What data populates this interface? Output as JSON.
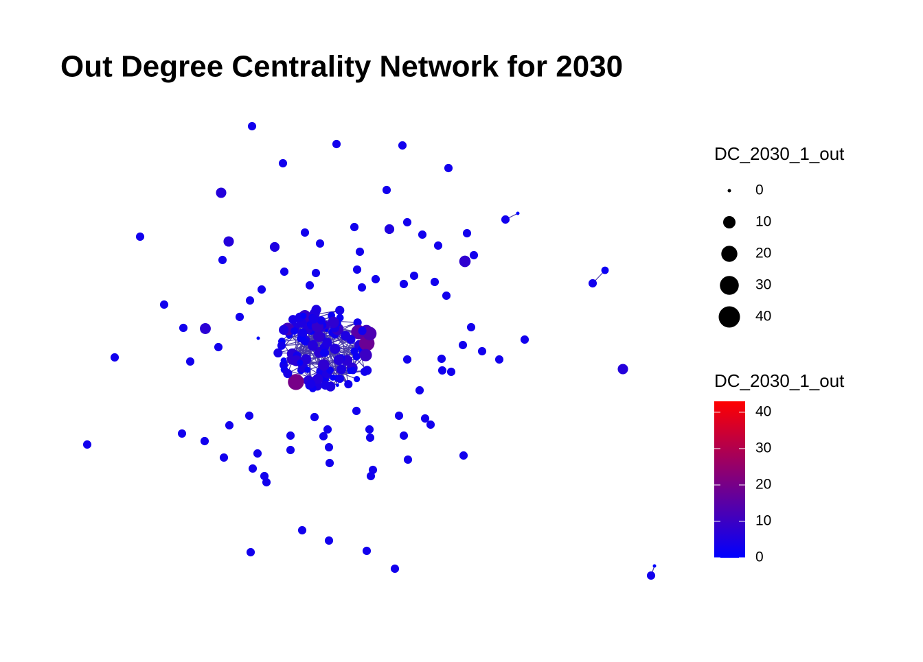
{
  "chart_data": {
    "type": "network",
    "title": "Out Degree Centrality Network for 2030",
    "values": [
      3,
      3,
      3,
      3,
      3,
      6,
      3,
      3,
      6,
      3,
      5,
      3,
      3,
      3,
      3,
      3,
      5,
      3,
      3,
      3,
      8,
      3,
      3,
      3,
      3,
      3,
      3,
      3,
      3,
      3,
      3,
      3,
      3,
      3,
      3,
      3,
      3,
      7,
      3,
      3,
      3,
      3,
      3,
      3,
      3,
      3,
      3,
      3,
      3,
      3,
      6,
      3,
      2,
      3,
      3,
      3,
      3,
      3,
      3,
      3,
      3,
      3,
      3,
      3,
      3,
      3,
      3,
      3,
      3,
      3,
      3,
      3,
      3,
      3,
      3,
      3,
      3,
      3,
      3,
      3,
      3,
      3,
      3,
      3,
      3,
      3,
      3,
      3,
      3,
      0,
      0,
      0,
      2,
      4,
      6,
      1,
      3,
      8,
      2,
      5,
      0,
      3,
      7,
      2,
      4,
      10,
      1,
      3,
      5,
      2,
      6,
      0,
      3,
      9,
      2,
      4,
      1,
      12,
      3,
      5,
      2,
      7,
      1,
      4,
      3,
      6,
      2,
      0,
      5,
      3,
      8,
      2,
      4,
      1,
      15,
      3,
      6,
      2,
      5,
      1,
      3,
      9,
      2,
      4,
      7,
      1,
      3,
      5,
      0,
      2,
      6,
      4,
      11,
      3,
      2,
      5,
      1,
      4,
      8,
      2,
      3,
      6,
      1,
      5,
      2,
      18,
      3,
      4,
      7,
      1,
      2,
      5,
      3,
      6,
      2,
      9,
      1,
      4,
      3,
      20,
      2,
      5,
      4,
      1,
      6,
      3,
      2,
      8,
      5,
      1,
      3,
      4,
      2,
      7,
      1,
      13,
      3,
      5,
      2,
      4,
      6,
      1,
      3,
      2,
      5,
      8,
      1,
      4,
      2,
      6,
      3,
      10
    ],
    "size_legend": {
      "title": "DC_2030_1_out",
      "breaks": [
        0,
        10,
        20,
        30,
        40
      ]
    },
    "color_legend": {
      "title": "DC_2030_1_out",
      "lim": [
        0,
        43
      ],
      "ticks": [
        0,
        10,
        20,
        30,
        40
      ],
      "colors": [
        "#0000ff",
        "#ff0000"
      ]
    }
  }
}
